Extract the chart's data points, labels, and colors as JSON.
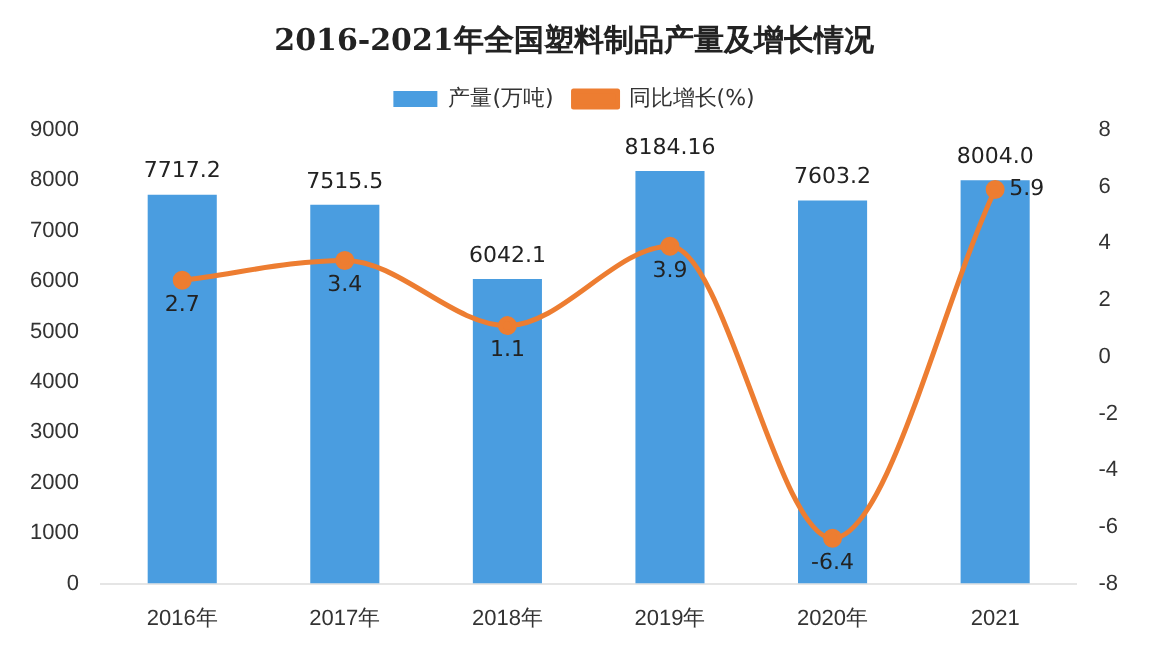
{
  "chart_data": {
    "type": "bar",
    "title": "2016-2021年全国塑料制品产量及增长情况",
    "categories": [
      "2016年",
      "2017年",
      "2018年",
      "2019年",
      "2020年",
      "2021"
    ],
    "series": [
      {
        "name": "产量(万吨)",
        "color": "#4a9de0",
        "values": [
          7717.2,
          7515.5,
          6042.1,
          8184.16,
          7603.2,
          8004.0
        ],
        "value_labels": [
          "7717.2",
          "7515.5",
          "6042.1",
          "8184.16",
          "7603.2",
          "8004.0"
        ]
      },
      {
        "name": "同比增长(%)",
        "type": "line",
        "axis": "y2",
        "color": "#ed7d31",
        "values": [
          2.7,
          3.4,
          1.1,
          3.9,
          -6.4,
          5.9
        ],
        "value_labels": [
          "2.7",
          "3.4",
          "1.1",
          "3.9",
          "-6.4",
          "5.9"
        ]
      }
    ],
    "ylim": [
      0,
      9000
    ],
    "yticks": [
      0,
      1000,
      2000,
      3000,
      4000,
      5000,
      6000,
      7000,
      8000,
      9000
    ],
    "y2lim": [
      -8,
      8
    ],
    "y2ticks": [
      -8,
      -6,
      -4,
      -2,
      0,
      2,
      4,
      6,
      8
    ],
    "legend": "top",
    "grid": false,
    "marker": "circle",
    "line_style": "solid"
  }
}
